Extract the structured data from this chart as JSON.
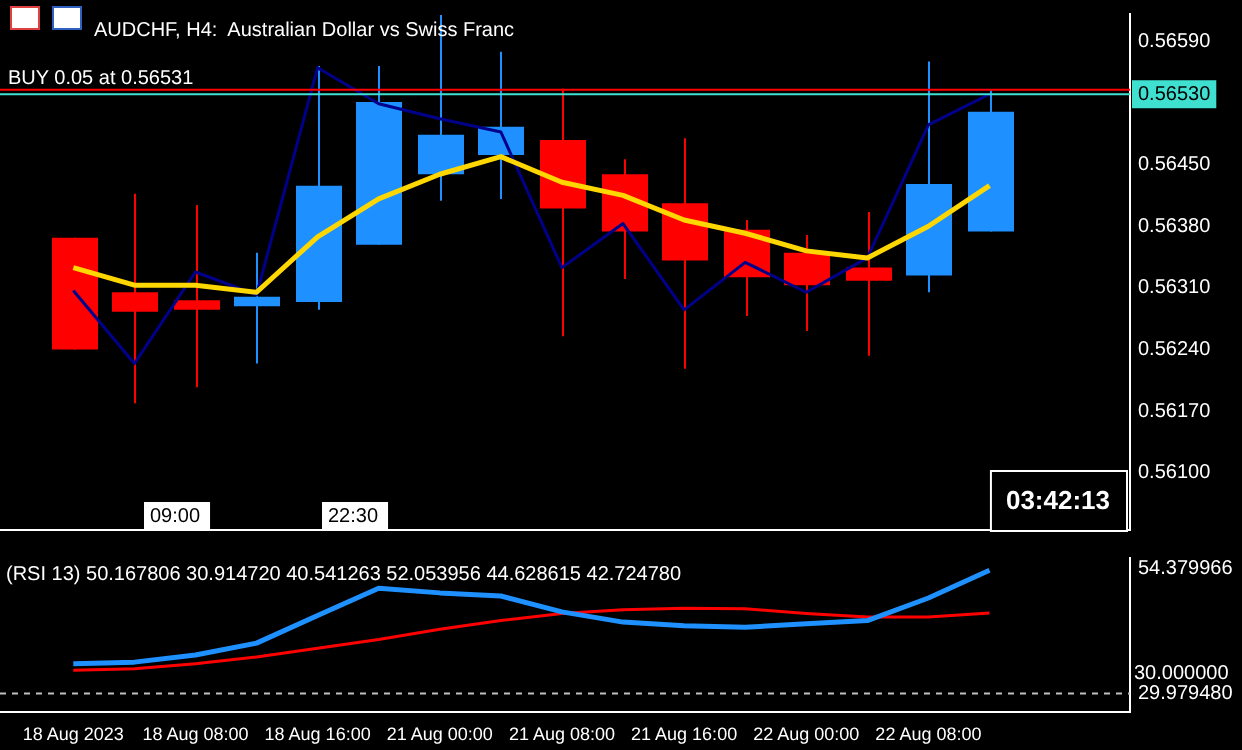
{
  "chart_data": [
    {
      "type": "candlestick",
      "title": "AUDCHF, H4:  Australian Dollar vs Swiss Franc",
      "categories": [
        null,
        null,
        null,
        null,
        null,
        null,
        null,
        null,
        null,
        null,
        null,
        null,
        null,
        null,
        null,
        null
      ],
      "ohlc": [
        [
          0.56367,
          0.56367,
          0.5624,
          0.5624
        ],
        [
          0.56305,
          0.56417,
          0.56179,
          0.56283
        ],
        [
          0.56296,
          0.56404,
          0.56197,
          0.56285
        ],
        [
          0.56289,
          0.5635,
          0.56224,
          0.563
        ],
        [
          0.56294,
          0.56562,
          0.56285,
          0.56426
        ],
        [
          0.56359,
          0.56562,
          0.56359,
          0.56521
        ],
        [
          0.56439,
          0.5662,
          0.56409,
          0.56484
        ],
        [
          0.56461,
          0.56578,
          0.56411,
          0.56493
        ],
        [
          0.56478,
          0.56536,
          0.56255,
          0.564
        ],
        [
          0.56439,
          0.56456,
          0.5632,
          0.56374
        ],
        [
          0.56406,
          0.5648,
          0.56218,
          0.56341
        ],
        [
          0.56376,
          0.56387,
          0.56278,
          0.56322
        ],
        [
          0.5635,
          0.5637,
          0.56261,
          0.56313
        ],
        [
          0.56333,
          0.56396,
          0.56233,
          0.56318
        ],
        [
          0.56324,
          0.56567,
          0.56305,
          0.56428
        ],
        [
          0.56374,
          0.56534,
          0.56374,
          0.5651
        ]
      ],
      "colors": [
        "#ff0000",
        "#ff0000",
        "#ff0000",
        "#1e90ff",
        "#1e90ff",
        "#1e90ff",
        "#1e90ff",
        "#1e90ff",
        "#ff0000",
        "#ff0000",
        "#ff0000",
        "#ff0000",
        "#ff0000",
        "#ff0000",
        "#1e90ff",
        "#1e90ff"
      ],
      "series": [
        {
          "type": "line",
          "color": "#ffd700",
          "values": [
            0.56333,
            0.56313,
            0.56313,
            0.56305,
            0.56368,
            0.56411,
            0.56439,
            0.56459,
            0.5643,
            0.56415,
            0.56387,
            0.56372,
            0.56352,
            0.56344,
            0.5638,
            0.56426
          ]
        },
        {
          "type": "line",
          "color": "#00008b",
          "values": [
            0.56307,
            0.56224,
            0.56328,
            0.56302,
            0.5656,
            0.56519,
            0.56502,
            0.56487,
            0.56333,
            0.56383,
            0.56285,
            0.56339,
            0.56305,
            0.56344,
            0.56495,
            0.5653
          ]
        }
      ],
      "ylim": [
        0.56035,
        0.56621
      ],
      "yticks": [
        {
          "value": 0.5659,
          "label": "0.56590"
        },
        {
          "value": 0.5645,
          "label": "0.56450"
        },
        {
          "value": 0.5638,
          "label": "0.56380"
        },
        {
          "value": 0.5631,
          "label": "0.56310"
        },
        {
          "value": 0.5624,
          "label": "0.56240"
        },
        {
          "value": 0.5617,
          "label": "0.56170"
        },
        {
          "value": 0.561,
          "label": "0.56100"
        }
      ],
      "ref_lines": [
        {
          "axis": "y",
          "value": 0.56535,
          "color": "#ff0000"
        },
        {
          "axis": "y",
          "value": 0.5653,
          "label": "0.56530",
          "color": "#40e0d0"
        }
      ],
      "annotations": [
        "BUY 0.05 at 0.56531",
        "09:00",
        "22:30",
        "03:42:13"
      ],
      "tick_labels": "y",
      "grid": false,
      "legend": false,
      "marker": "none"
    },
    {
      "type": "line",
      "title": "(RSI 13) 50.167806 30.914720 40.541263 52.053956 44.628615 42.724780",
      "categories": [
        "18 Aug 2023",
        null,
        "18 Aug 08:00",
        null,
        "18 Aug 16:00",
        null,
        "21 Aug 00:00",
        null,
        "21 Aug 08:00",
        null,
        "21 Aug 16:00",
        null,
        "22 Aug 00:00",
        null,
        "22 Aug 08:00",
        null
      ],
      "series": [
        {
          "color": "#1e90ff",
          "values": [
            35.8,
            36.1,
            37.5,
            39.8,
            45.2,
            50.5,
            49.6,
            49.0,
            45.9,
            43.9,
            43.2,
            42.9,
            43.6,
            44.2,
            48.6,
            54.0
          ]
        },
        {
          "color": "#ff0000",
          "values": [
            34.5,
            34.8,
            35.8,
            37.1,
            38.8,
            40.5,
            42.5,
            44.2,
            45.6,
            46.3,
            46.6,
            46.5,
            45.6,
            44.9,
            44.9,
            45.7
          ]
        }
      ],
      "ylim": [
        26.3,
        56.4
      ],
      "yticks": [
        {
          "value": 54.379966,
          "label": "54.379966"
        },
        {
          "value": 29.97948,
          "label": "29.979480"
        }
      ],
      "ref_lines": [
        {
          "axis": "y",
          "value": 30,
          "label": "30.000000",
          "color": "#c0c0c0",
          "line_style": "dashed"
        }
      ],
      "grid": false,
      "legend": false,
      "marker": "none"
    }
  ]
}
